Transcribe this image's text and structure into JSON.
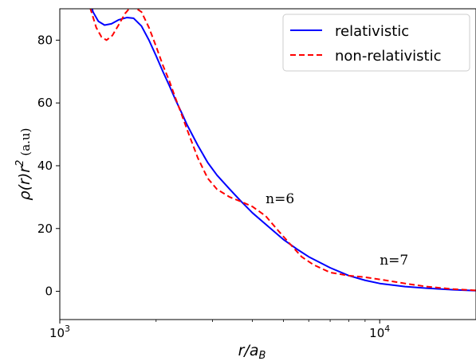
{
  "chart_data": {
    "type": "line",
    "xlabel": {
      "main": "r/a",
      "sub": "B"
    },
    "ylabel": {
      "main": "ρ(r)r",
      "sup": "2",
      "unit": "(a.u)"
    },
    "xscale": "log",
    "xlim": [
      1000,
      20000
    ],
    "ylim": [
      -9,
      90
    ],
    "xticks": [
      {
        "value": 1000,
        "base": "10",
        "exp": "3"
      },
      {
        "value": 10000,
        "base": "10",
        "exp": "4"
      }
    ],
    "yticks": [
      0,
      20,
      40,
      60,
      80
    ],
    "legend": {
      "position": "top-right"
    },
    "annotations": [
      {
        "text": "n=6",
        "x": 4400,
        "y": 28
      },
      {
        "text": "n=7",
        "x": 10000,
        "y": 8.5
      }
    ],
    "series": [
      {
        "name": "relativistic",
        "color": "#0000ff",
        "dash": "solid",
        "points": [
          [
            1240,
            93
          ],
          [
            1270,
            89
          ],
          [
            1320,
            86
          ],
          [
            1380,
            84.8
          ],
          [
            1450,
            85.2
          ],
          [
            1530,
            86.5
          ],
          [
            1620,
            87.2
          ],
          [
            1700,
            87
          ],
          [
            1800,
            84.5
          ],
          [
            1900,
            80
          ],
          [
            2000,
            75
          ],
          [
            2100,
            70
          ],
          [
            2200,
            65.5
          ],
          [
            2300,
            61
          ],
          [
            2400,
            57
          ],
          [
            2500,
            53
          ],
          [
            2700,
            46.5
          ],
          [
            2900,
            41
          ],
          [
            3100,
            37
          ],
          [
            3400,
            32.5
          ],
          [
            3700,
            28.5
          ],
          [
            4000,
            25
          ],
          [
            4500,
            20.5
          ],
          [
            5000,
            16.5
          ],
          [
            5500,
            13.5
          ],
          [
            6000,
            11
          ],
          [
            7000,
            7.5
          ],
          [
            8000,
            5
          ],
          [
            9000,
            3.5
          ],
          [
            10000,
            2.5
          ],
          [
            12000,
            1.5
          ],
          [
            14000,
            1
          ],
          [
            17000,
            0.5
          ],
          [
            20000,
            0.2
          ]
        ]
      },
      {
        "name": "non-relativistic",
        "color": "#ff0000",
        "dash": "dashed",
        "points": [
          [
            1220,
            93
          ],
          [
            1260,
            88.5
          ],
          [
            1300,
            84
          ],
          [
            1350,
            81
          ],
          [
            1400,
            80
          ],
          [
            1460,
            81.5
          ],
          [
            1530,
            85
          ],
          [
            1600,
            88.5
          ],
          [
            1680,
            91
          ],
          [
            1800,
            89
          ],
          [
            1900,
            84
          ],
          [
            2000,
            78
          ],
          [
            2100,
            72
          ],
          [
            2200,
            67
          ],
          [
            2300,
            61.5
          ],
          [
            2400,
            56.5
          ],
          [
            2500,
            51.5
          ],
          [
            2700,
            42.5
          ],
          [
            2900,
            36
          ],
          [
            3100,
            32.5
          ],
          [
            3400,
            30
          ],
          [
            3700,
            28.5
          ],
          [
            4000,
            27
          ],
          [
            4400,
            24
          ],
          [
            4800,
            19.5
          ],
          [
            5200,
            15.5
          ],
          [
            5700,
            11
          ],
          [
            6200,
            8.5
          ],
          [
            7000,
            6
          ],
          [
            8000,
            5
          ],
          [
            9000,
            4.5
          ],
          [
            10000,
            3.8
          ],
          [
            12000,
            2.5
          ],
          [
            14000,
            1.5
          ],
          [
            17000,
            0.7
          ],
          [
            20000,
            0.3
          ]
        ]
      }
    ]
  }
}
